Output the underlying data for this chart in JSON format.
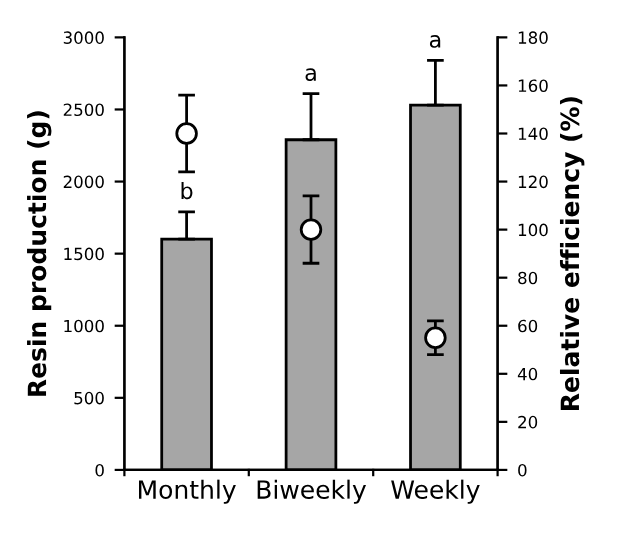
{
  "chart_data": {
    "type": "bar",
    "categories": [
      "Monthly",
      "Biweekly",
      "Weekly"
    ],
    "ylabel": "Resin production (g)",
    "y2label": "Relative efficiency (%)",
    "series": [
      {
        "color": "#a6a6a6",
        "values": [
          1600,
          2290,
          2530
        ],
        "errors": [
          [
            1600,
            1790
          ],
          [
            2290,
            2610
          ],
          [
            2530,
            2840
          ]
        ]
      },
      {
        "type": "scatter",
        "axis": "y2",
        "color": "#ffffff",
        "x": [
          "Monthly",
          "Biweekly",
          "Weekly"
        ],
        "values": [
          140,
          100,
          55
        ],
        "errors": [
          16,
          14,
          7
        ]
      }
    ],
    "ylim": [
      0,
      3000
    ],
    "yticks": [
      0,
      500,
      1000,
      1500,
      2000,
      2500,
      3000
    ],
    "y2lim": [
      0,
      180
    ],
    "y2ticks": [
      0,
      20,
      40,
      60,
      80,
      100,
      120,
      140,
      160,
      180
    ],
    "annotations": [
      "b",
      "a",
      "a"
    ],
    "marker": "circle",
    "grid": false,
    "legend": false
  }
}
